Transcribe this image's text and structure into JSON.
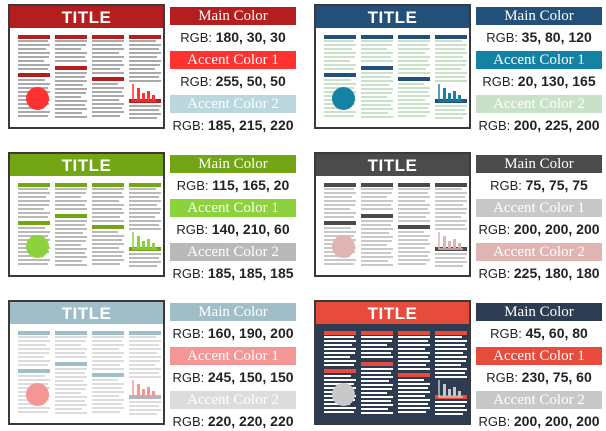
{
  "schemes": [
    {
      "poster_title": "TITLE",
      "colors": {
        "main": "#b41e1e",
        "accent1": "#ff3232",
        "accent2": "#b9d7dc",
        "panel": "#ffffff",
        "text_lines": "#aaaaaa"
      },
      "swatches": [
        {
          "label": "Main Color",
          "rgb_prefix": "RGB:",
          "rgb_value": "180, 30, 30",
          "label_color": "#ffffff"
        },
        {
          "label": "Accent Color 1",
          "rgb_prefix": "RGB:",
          "rgb_value": "255, 50, 50",
          "label_color": "#ffffff"
        },
        {
          "label": "Accent Color 2",
          "rgb_prefix": "RGB:",
          "rgb_value": "185, 215, 220",
          "label_color": "#ffffff"
        }
      ]
    },
    {
      "poster_title": "TITLE",
      "colors": {
        "main": "#235078",
        "accent1": "#1482a5",
        "accent2": "#c8e1c8",
        "panel": "#ffffff",
        "text_lines": "#c8e1c8"
      },
      "swatches": [
        {
          "label": "Main Color",
          "rgb_prefix": "RGB:",
          "rgb_value": "35, 80, 120",
          "label_color": "#ffffff"
        },
        {
          "label": "Accent Color 1",
          "rgb_prefix": "RGB:",
          "rgb_value": "20, 130, 165",
          "label_color": "#ffffff"
        },
        {
          "label": "Accent Color 2",
          "rgb_prefix": "RGB:",
          "rgb_value": "200, 225, 200",
          "label_color": "#ffffff"
        }
      ]
    },
    {
      "poster_title": "TITLE",
      "colors": {
        "main": "#73a514",
        "accent1": "#8cd23c",
        "accent2": "#b9b9b9",
        "panel": "#ffffff",
        "text_lines": "#b9b9b9"
      },
      "swatches": [
        {
          "label": "Main Color",
          "rgb_prefix": "RGB:",
          "rgb_value": "115, 165, 20",
          "label_color": "#ffffff"
        },
        {
          "label": "Accent Color 1",
          "rgb_prefix": "RGB:",
          "rgb_value": "140, 210, 60",
          "label_color": "#ffffff"
        },
        {
          "label": "Accent Color 2",
          "rgb_prefix": "RGB:",
          "rgb_value": "185, 185, 185",
          "label_color": "#ffffff"
        }
      ]
    },
    {
      "poster_title": "TITLE",
      "colors": {
        "main": "#4b4b4b",
        "accent1": "#c8c8c8",
        "accent2": "#e1b4b4",
        "panel": "#ffffff",
        "text_lines": "#c8c8c8"
      },
      "swatches": [
        {
          "label": "Main Color",
          "rgb_prefix": "RGB:",
          "rgb_value": "75, 75, 75",
          "label_color": "#ffffff"
        },
        {
          "label": "Accent Color 1",
          "rgb_prefix": "RGB:",
          "rgb_value": "200, 200, 200",
          "label_color": "#ffffff"
        },
        {
          "label": "Accent Color 2",
          "rgb_prefix": "RGB:",
          "rgb_value": "225, 180, 180",
          "label_color": "#ffffff"
        }
      ]
    },
    {
      "poster_title": "TITLE",
      "colors": {
        "main": "#a0bec8",
        "accent1": "#f59696",
        "accent2": "#dcdcdc",
        "panel": "#ffffff",
        "text_lines": "#dcdcdc"
      },
      "swatches": [
        {
          "label": "Main Color",
          "rgb_prefix": "RGB:",
          "rgb_value": "160, 190, 200",
          "label_color": "#ffffff"
        },
        {
          "label": "Accent Color 1",
          "rgb_prefix": "RGB:",
          "rgb_value": "245, 150, 150",
          "label_color": "#ffffff"
        },
        {
          "label": "Accent Color 2",
          "rgb_prefix": "RGB:",
          "rgb_value": "220, 220, 220",
          "label_color": "#ffffff"
        }
      ]
    },
    {
      "poster_title": "TITLE",
      "colors": {
        "main": "#2d3c50",
        "accent1": "#e64b3c",
        "accent2": "#c8c8c8",
        "panel": "#2d3c50",
        "text_lines": "#ffffff"
      },
      "swatches": [
        {
          "label": "Main Color",
          "rgb_prefix": "RGB:",
          "rgb_value": "45, 60, 80",
          "label_color": "#ffffff"
        },
        {
          "label": "Accent Color 1",
          "rgb_prefix": "RGB:",
          "rgb_value": "230, 75, 60",
          "label_color": "#ffffff"
        },
        {
          "label": "Accent Color 2",
          "rgb_prefix": "RGB:",
          "rgb_value": "200, 200, 200",
          "label_color": "#ffffff"
        }
      ]
    }
  ]
}
